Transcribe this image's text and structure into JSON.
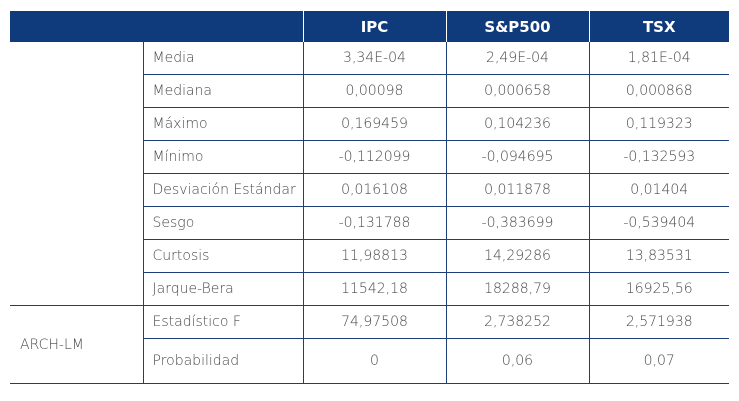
{
  "header": {
    "blank": "",
    "cols": [
      "IPC",
      "S&P500",
      "TSX"
    ]
  },
  "rows": [
    {
      "label": "Media",
      "values": [
        "3,34E-04",
        "2,49E-04",
        "1,81E-04"
      ]
    },
    {
      "label": "Mediana",
      "values": [
        "0,00098",
        "0,000658",
        "0,000868"
      ]
    },
    {
      "label": "Máximo",
      "values": [
        "0,169459",
        "0,104236",
        "0,119323"
      ]
    },
    {
      "label": "Mínimo",
      "values": [
        "-0,112099",
        "-0,094695",
        "-0,132593"
      ]
    },
    {
      "label": "Desviación Estándar",
      "values": [
        "0,016108",
        "0,011878",
        "0,01404"
      ]
    },
    {
      "label": "Sesgo",
      "values": [
        "-0,131788",
        "-0,383699",
        "-0,539404"
      ]
    },
    {
      "label": "Curtosis",
      "values": [
        "11,98813",
        "14,29286",
        "13,83531"
      ]
    },
    {
      "label": "Jarque-Bera",
      "values": [
        "11542,18",
        "18288,79",
        "16925,56"
      ]
    }
  ],
  "arch_group": {
    "label": "ARCH-LM",
    "rows": [
      {
        "label": "Estadístico F",
        "values": [
          "74,97508",
          "2,738252",
          "2,571938"
        ]
      },
      {
        "label": "Probabilidad",
        "values": [
          "0",
          "0,06",
          "0,07"
        ]
      }
    ]
  }
}
